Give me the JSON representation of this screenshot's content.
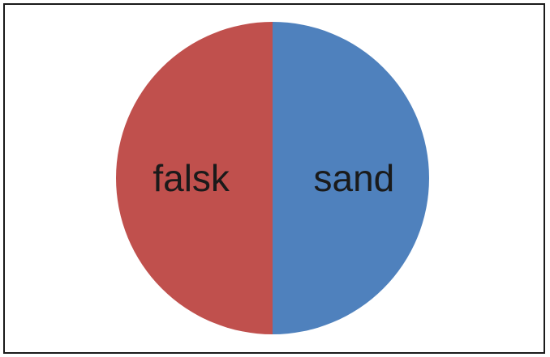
{
  "chart_data": {
    "type": "pie",
    "categories": [
      "sand",
      "falsk"
    ],
    "values": [
      50,
      50
    ],
    "colors": [
      "#4f81bd",
      "#c0504d"
    ],
    "labels_inside": true,
    "legend": "none",
    "title": ""
  }
}
